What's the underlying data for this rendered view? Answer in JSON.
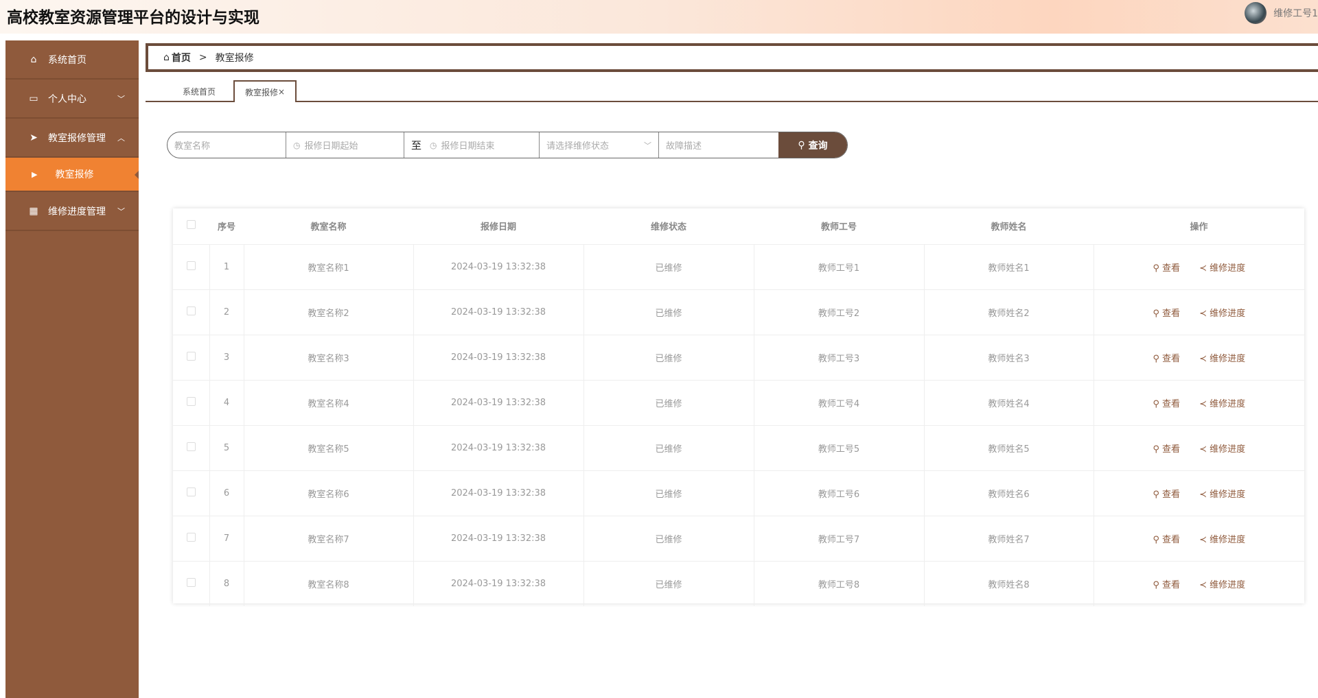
{
  "header": {
    "title": "高校教室资源管理平台的设计与实现",
    "user": "维修工号1"
  },
  "sidebar": {
    "items": [
      {
        "label": "系统首页",
        "icon": "home-icon"
      },
      {
        "label": "个人中心",
        "icon": "calendar-icon",
        "chevron": "﹀"
      },
      {
        "label": "教室报修管理",
        "icon": "paper-plane-icon",
        "chevron": "︿"
      },
      {
        "label": "教室报修",
        "icon": "caret-right-icon",
        "sub": true
      },
      {
        "label": "维修进度管理",
        "icon": "grid-icon",
        "chevron": "﹀"
      }
    ]
  },
  "breadcrumb": {
    "home": "首页",
    "sep": ">",
    "current": "教室报修"
  },
  "tabs": [
    {
      "label": "系统首页"
    },
    {
      "label": "教室报修",
      "close": "×"
    }
  ],
  "search": {
    "name_placeholder": "教室名称",
    "start_placeholder": "报修日期起始",
    "to": "至",
    "end_placeholder": "报修日期结束",
    "status_placeholder": "请选择维修状态",
    "desc_placeholder": "故障描述",
    "button": "查询"
  },
  "table": {
    "headers": [
      "序号",
      "教室名称",
      "报修日期",
      "维修状态",
      "教师工号",
      "教师姓名",
      "操作"
    ],
    "actions": {
      "view": "查看",
      "progress": "维修进度"
    },
    "rows": [
      [
        "1",
        "教室名称1",
        "2024-03-19 13:32:38",
        "已维修",
        "教师工号1",
        "教师姓名1"
      ],
      [
        "2",
        "教室名称2",
        "2024-03-19 13:32:38",
        "已维修",
        "教师工号2",
        "教师姓名2"
      ],
      [
        "3",
        "教室名称3",
        "2024-03-19 13:32:38",
        "已维修",
        "教师工号3",
        "教师姓名3"
      ],
      [
        "4",
        "教室名称4",
        "2024-03-19 13:32:38",
        "已维修",
        "教师工号4",
        "教师姓名4"
      ],
      [
        "5",
        "教室名称5",
        "2024-03-19 13:32:38",
        "已维修",
        "教师工号5",
        "教师姓名5"
      ],
      [
        "6",
        "教室名称6",
        "2024-03-19 13:32:38",
        "已维修",
        "教师工号6",
        "教师姓名6"
      ],
      [
        "7",
        "教室名称7",
        "2024-03-19 13:32:38",
        "已维修",
        "教师工号7",
        "教师姓名7"
      ],
      [
        "8",
        "教室名称8",
        "2024-03-19 13:32:38",
        "已维修",
        "教师工号8",
        "教师姓名8"
      ]
    ]
  },
  "colors": {
    "sidebar": "#8f5a3c",
    "active": "#f08232",
    "accent": "#6b4c3b"
  }
}
